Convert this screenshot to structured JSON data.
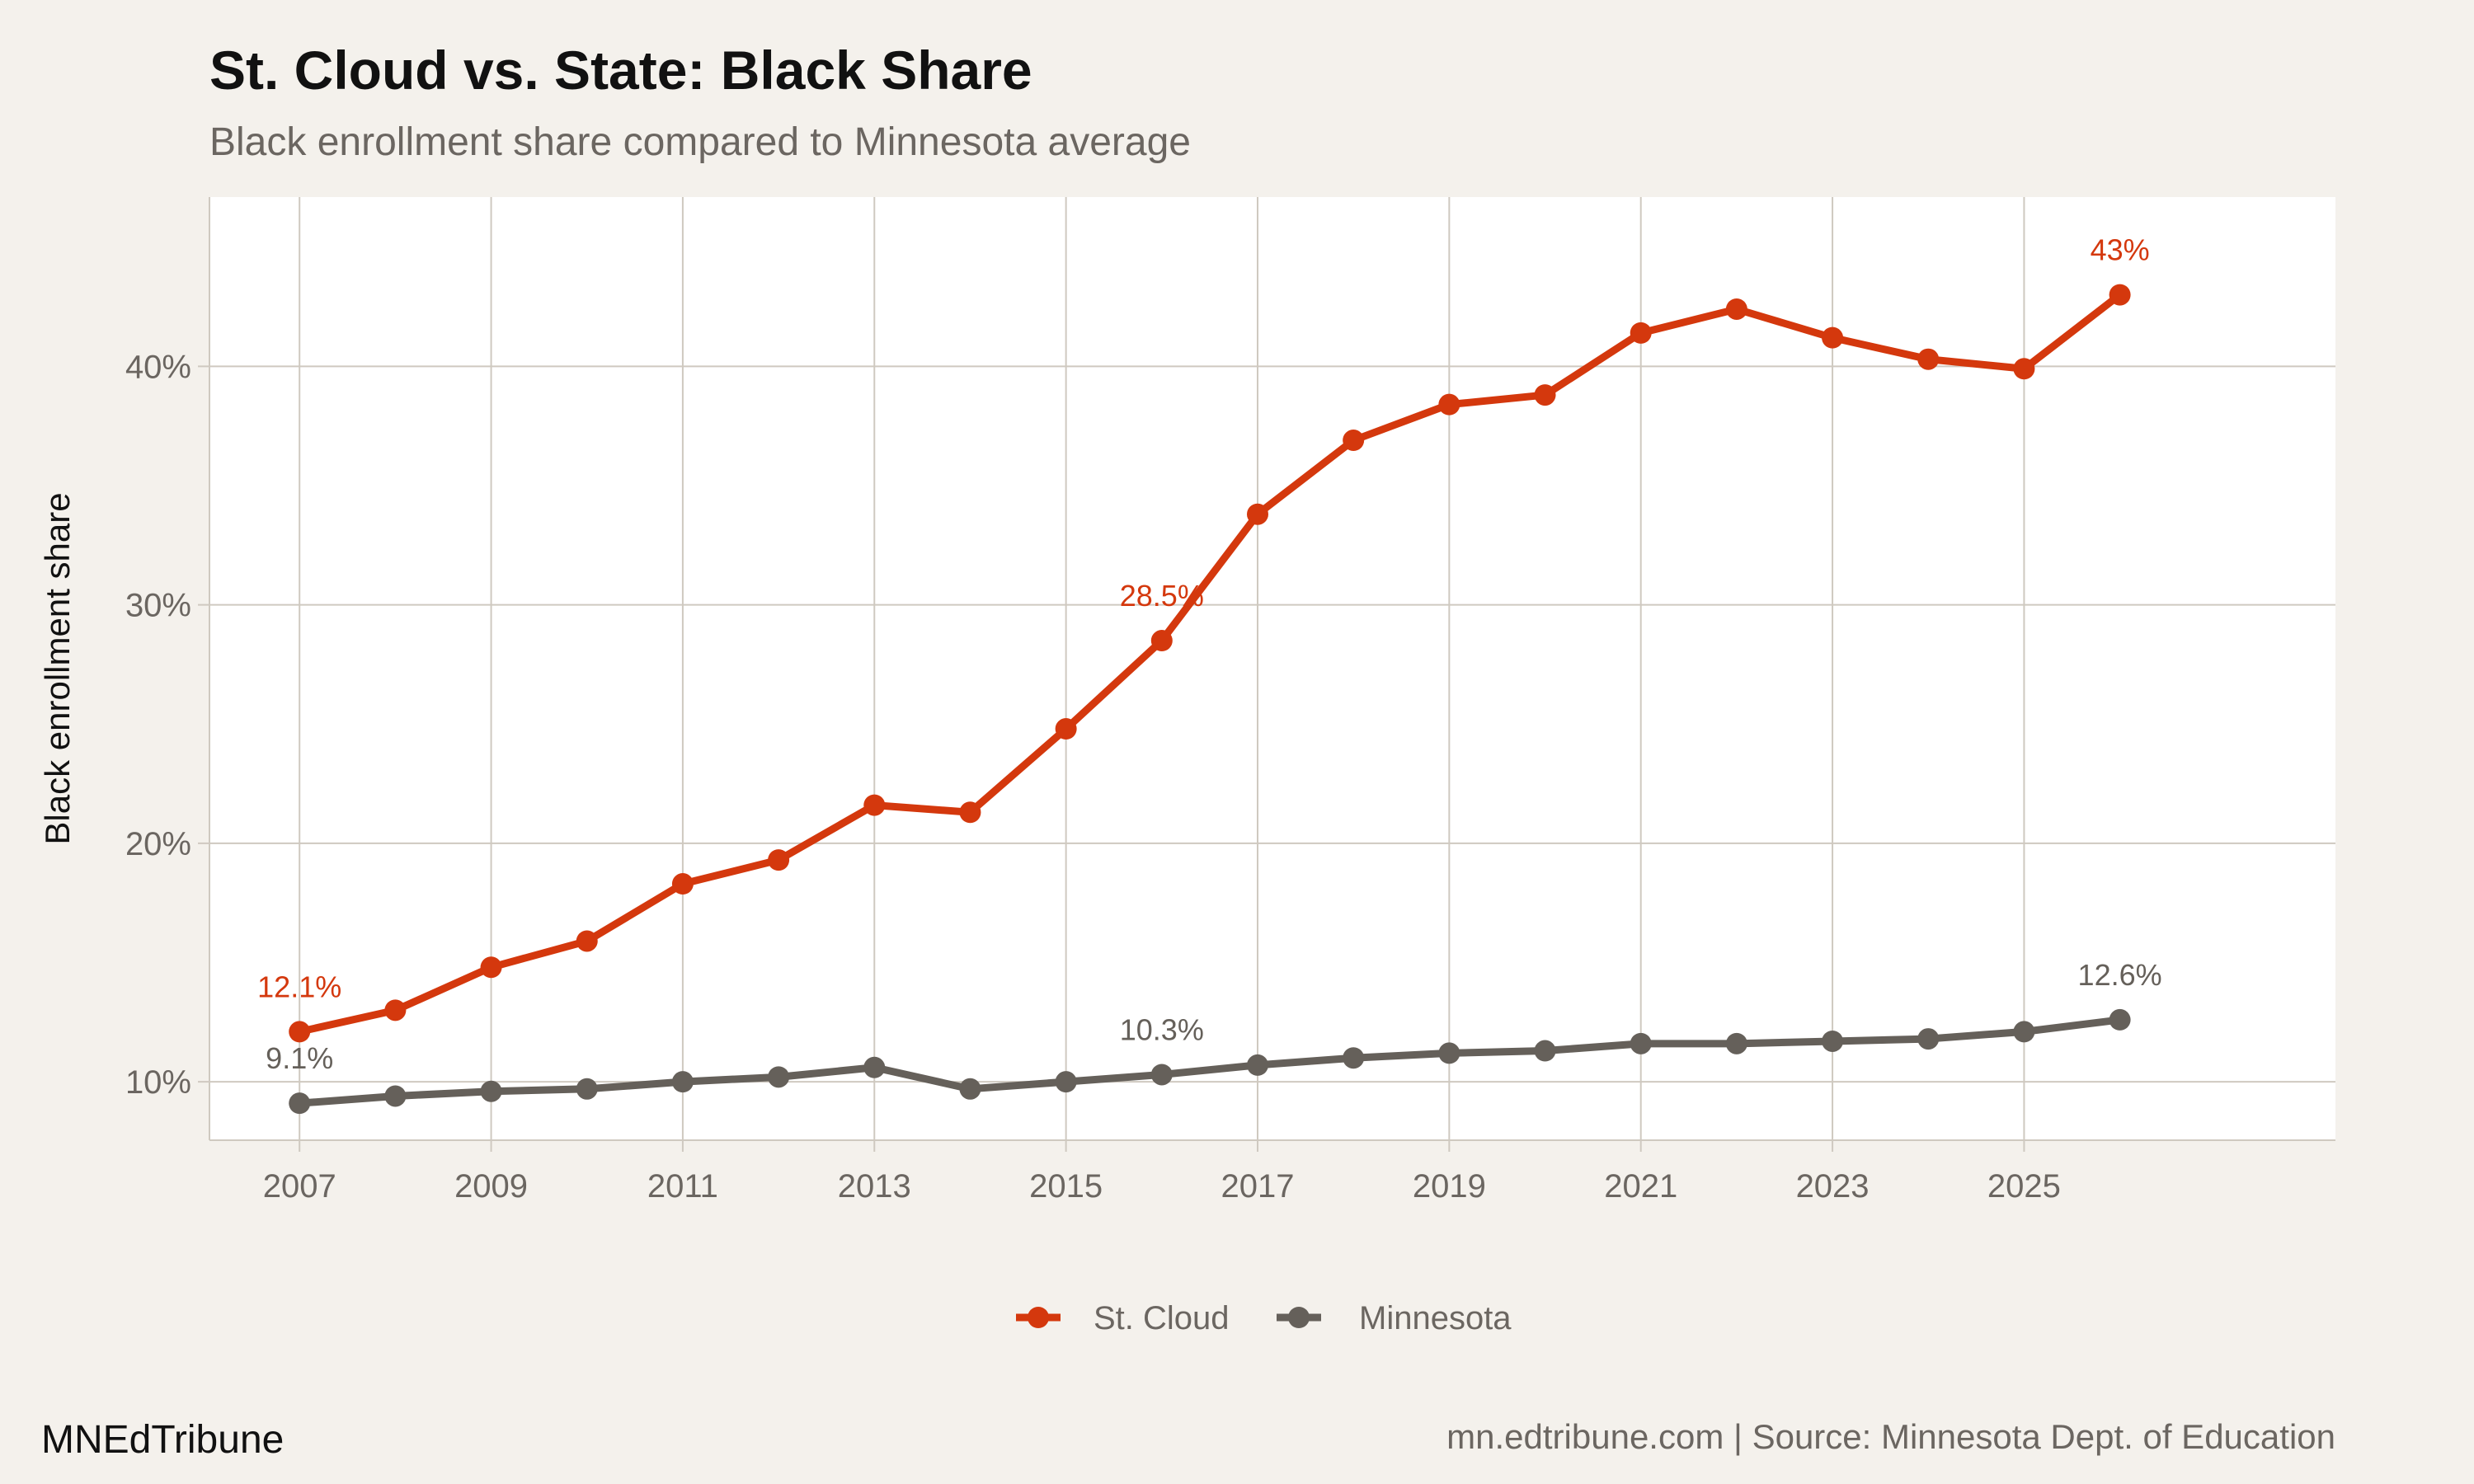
{
  "title": "St. Cloud vs. State: Black Share",
  "subtitle": "Black enrollment share compared to Minnesota average",
  "footer": {
    "brand": "MNEdTribune",
    "source": "mn.edtribune.com | Source: Minnesota Dept. of Education"
  },
  "colors": {
    "background": "#f4f1ec",
    "panel": "#ffffff",
    "grid": "#cfc9c0",
    "st_cloud": "#d4380d",
    "minnesota": "#65605a"
  },
  "chart_data": {
    "type": "line",
    "xlabel": "",
    "ylabel": "Black enrollment share",
    "x": [
      2007,
      2008,
      2009,
      2010,
      2011,
      2012,
      2013,
      2014,
      2015,
      2016,
      2017,
      2018,
      2019,
      2020,
      2021,
      2022,
      2023,
      2024,
      2025,
      2026
    ],
    "xlim": [
      2006.06,
      2028.25
    ],
    "ylim": [
      7.55,
      47.1
    ],
    "x_ticks": [
      "2007",
      "2009",
      "2011",
      "2013",
      "2015",
      "2017",
      "2019",
      "2021",
      "2023",
      "2025"
    ],
    "y_ticks": [
      "10%",
      "20%",
      "30%",
      "40%"
    ],
    "grid": true,
    "legend_position": "bottom",
    "series": [
      {
        "name": "St. Cloud",
        "color": "#d4380d",
        "values": [
          12.1,
          13.0,
          14.8,
          15.9,
          18.3,
          19.3,
          21.6,
          21.3,
          24.8,
          28.5,
          33.8,
          36.9,
          38.4,
          38.8,
          41.4,
          42.4,
          41.2,
          40.3,
          39.9,
          43.0
        ],
        "labels": [
          {
            "x": 2007,
            "text": "12.1%"
          },
          {
            "x": 2016,
            "text": "28.5%"
          },
          {
            "x": 2026,
            "text": "43%"
          }
        ]
      },
      {
        "name": "Minnesota",
        "color": "#65605a",
        "values": [
          9.1,
          9.4,
          9.6,
          9.7,
          10.0,
          10.2,
          10.6,
          9.7,
          10.0,
          10.3,
          10.7,
          11.0,
          11.2,
          11.3,
          11.6,
          11.6,
          11.7,
          11.8,
          12.1,
          12.6
        ],
        "labels": [
          {
            "x": 2007,
            "text": "9.1%"
          },
          {
            "x": 2016,
            "text": "10.3%"
          },
          {
            "x": 2026,
            "text": "12.6%"
          }
        ]
      }
    ]
  }
}
